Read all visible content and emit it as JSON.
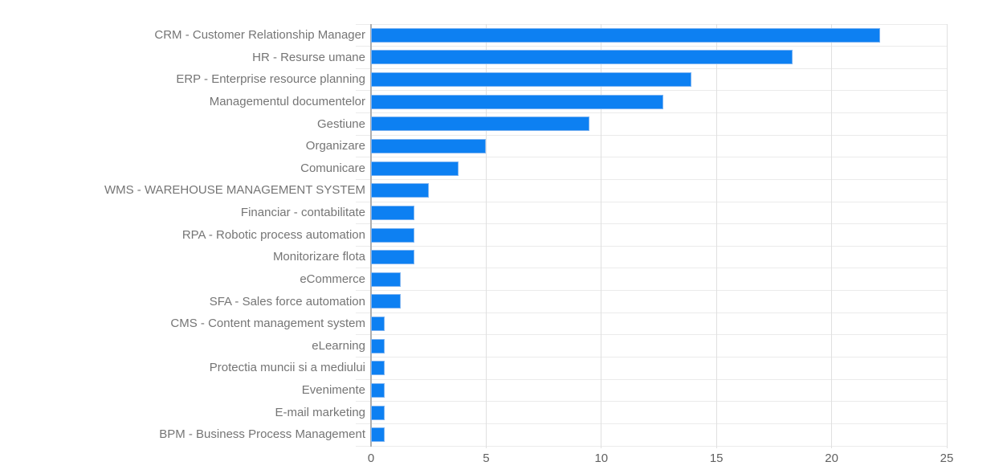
{
  "chart_data": {
    "type": "bar",
    "orientation": "horizontal",
    "title": "",
    "xlabel": "",
    "ylabel": "",
    "categories": [
      "CRM - Customer Relationship Manager",
      "HR - Resurse umane",
      "ERP - Enterprise resource planning",
      "Managementul documentelor",
      "Gestiune",
      "Organizare",
      "Comunicare",
      "WMS - WAREHOUSE MANAGEMENT SYSTEM",
      "Financiar - contabilitate",
      "RPA - Robotic process automation",
      "Monitorizare flota",
      "eCommerce",
      "SFA - Sales force automation",
      "CMS - Content management system",
      "eLearning",
      "Protectia muncii si a mediului",
      "Evenimente",
      "E-mail marketing",
      "BPM - Business Process Management"
    ],
    "values": [
      22.1,
      18.3,
      13.9,
      12.7,
      9.5,
      5.0,
      3.8,
      2.5,
      1.9,
      1.9,
      1.9,
      1.3,
      1.3,
      0.6,
      0.6,
      0.6,
      0.6,
      0.6,
      0.6
    ],
    "xlim": [
      0,
      25
    ],
    "x_ticks": [
      "0",
      "5",
      "10",
      "15",
      "20",
      "25"
    ],
    "grid": true,
    "legend": "none",
    "colors": {
      "bar_fill": "#0d80f2",
      "bar_border": "#7cb3f1",
      "v_gridline": "#e0e0e0",
      "row_line": "#ebebeb",
      "y_axis_line": "#aeaeae",
      "category_label": "#757575",
      "tick_label": "#616161",
      "background": "#ffffff"
    }
  }
}
